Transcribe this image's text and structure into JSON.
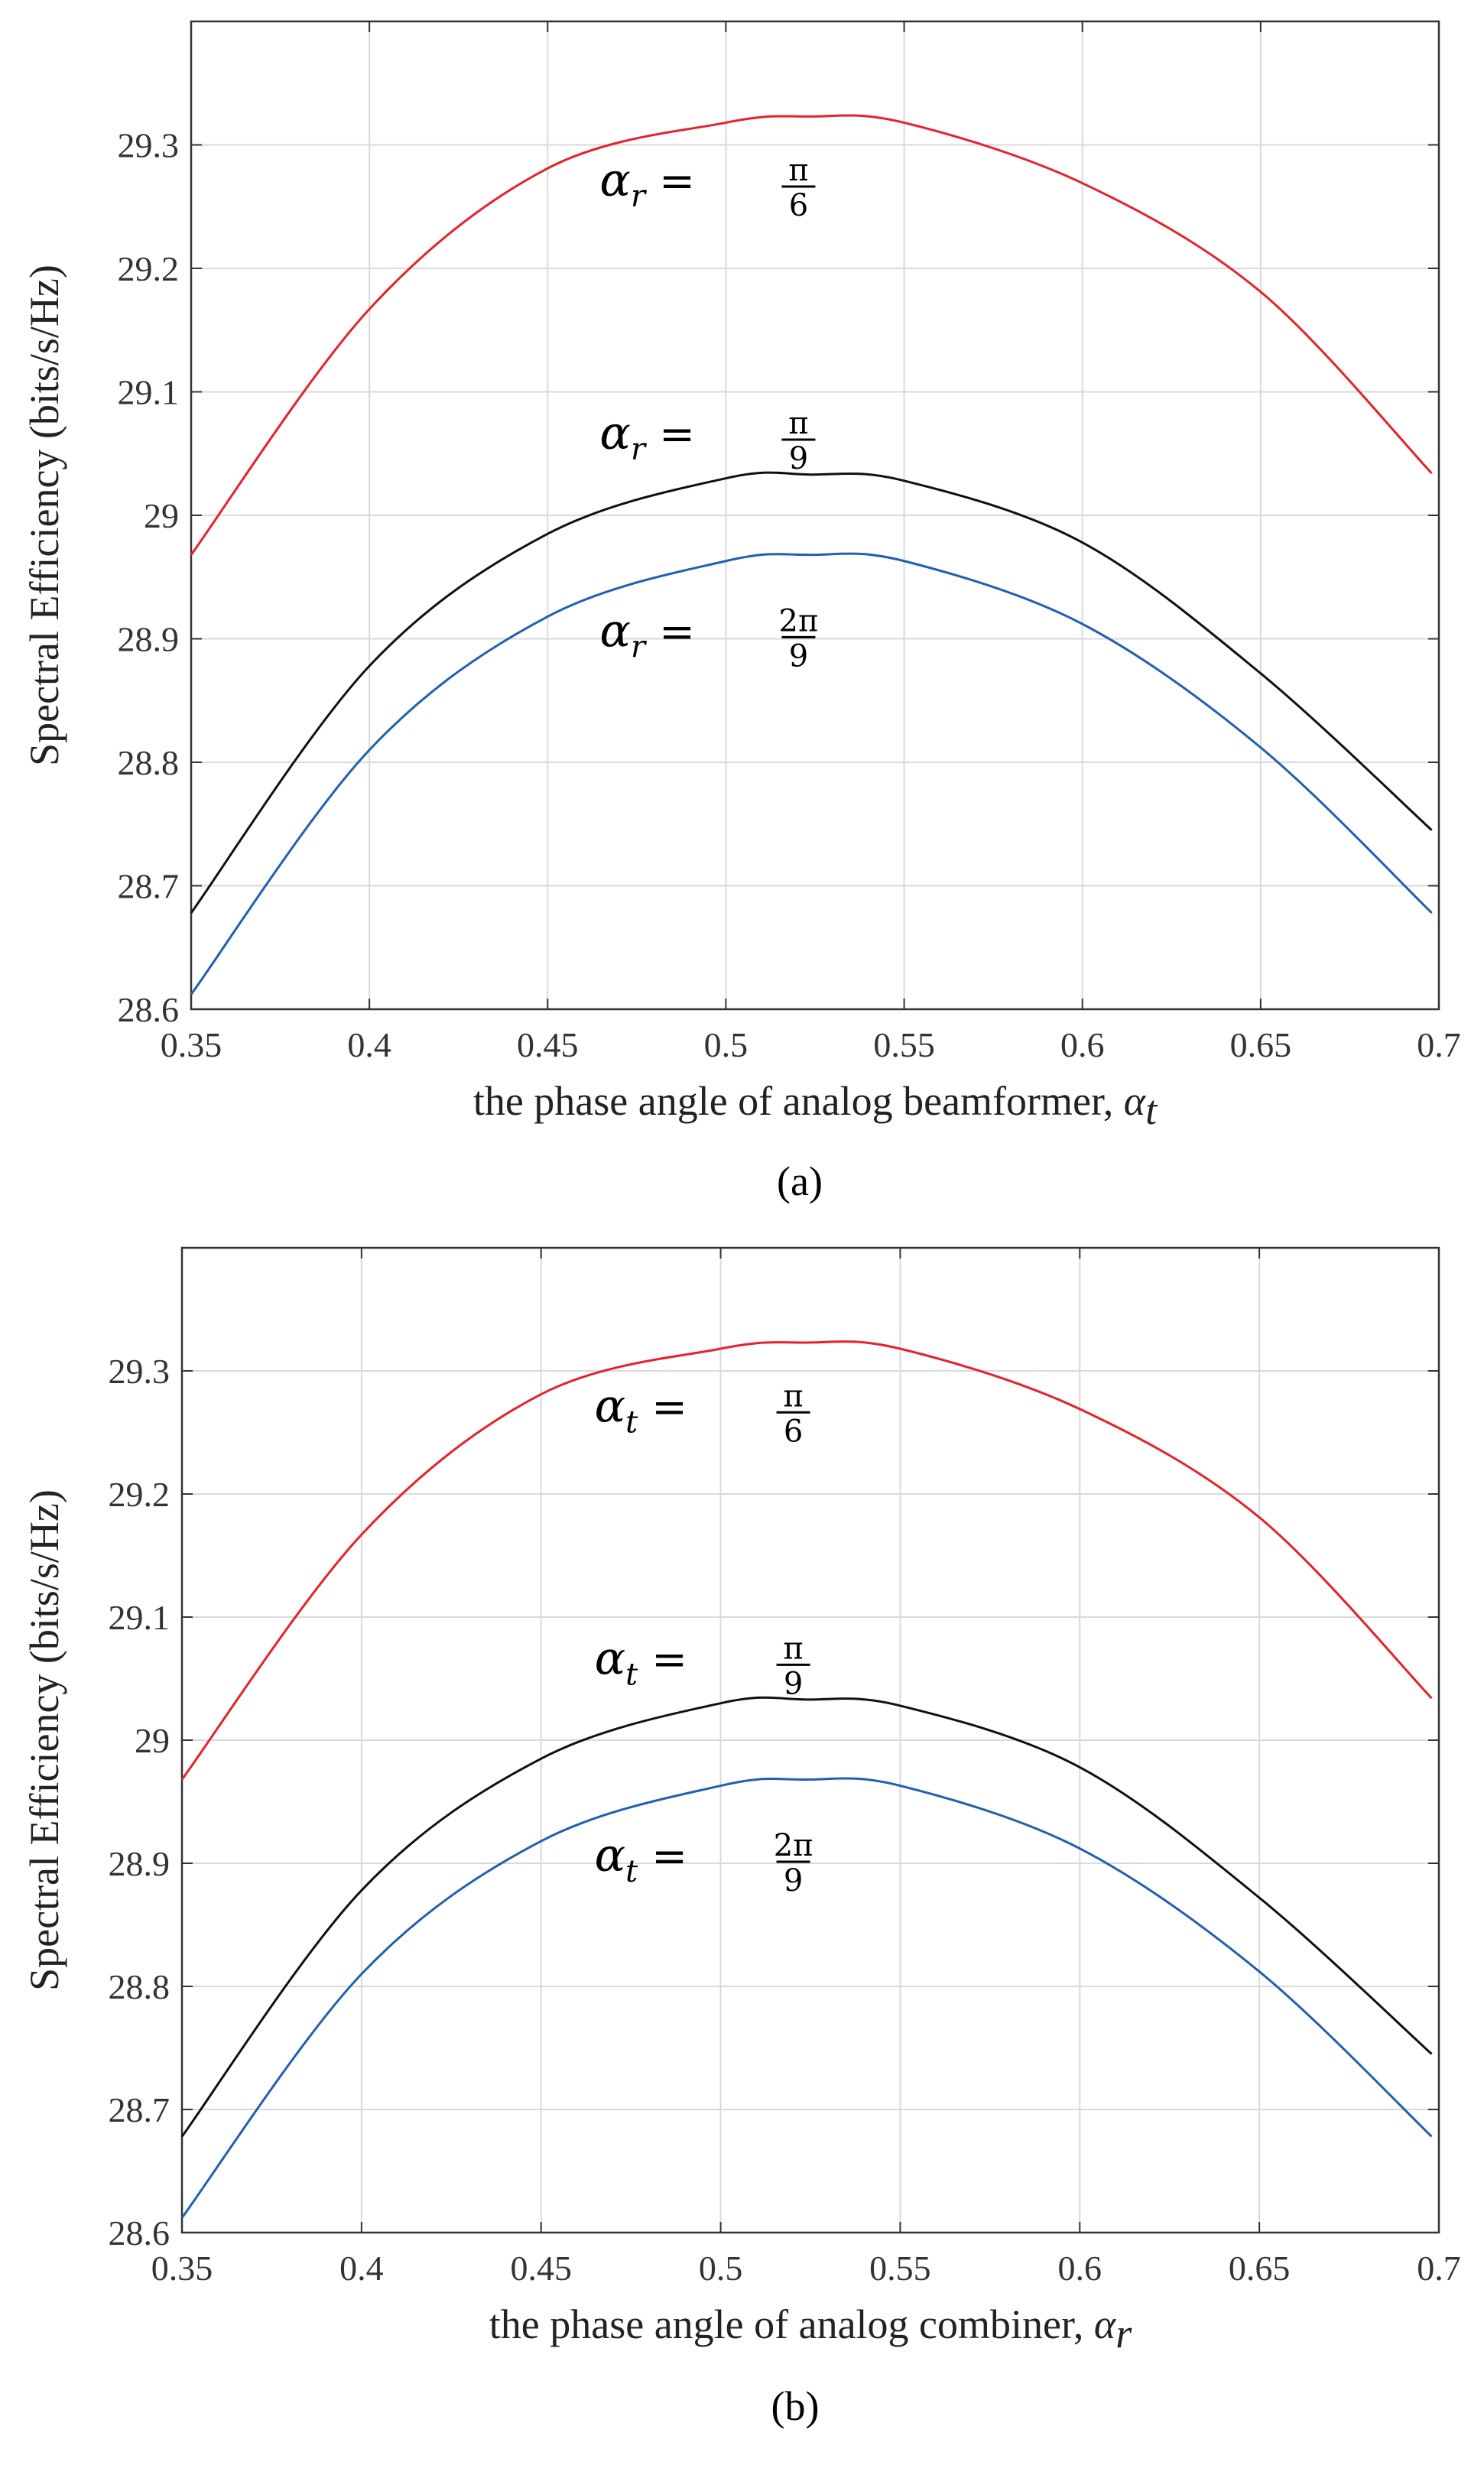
{
  "chart_data": [
    {
      "type": "line",
      "panel": "a",
      "caption": "(a)",
      "xlabel_prefix": "the phase angle of analog beamformer, ",
      "xlabel_var": "α",
      "xlabel_sub": "t",
      "ylabel": "Spectral Efficiency (bits/s/Hz)",
      "xlim": [
        0.35,
        0.7
      ],
      "ylim": [
        28.6,
        29.4
      ],
      "xticks": [
        "0.35",
        "0.4",
        "0.45",
        "0.5",
        "0.55",
        "0.6",
        "0.65",
        "0.7"
      ],
      "yticks": [
        "28.6",
        "28.7",
        "28.8",
        "28.9",
        "29",
        "29.1",
        "29.2",
        "29.3"
      ],
      "grid": true,
      "series": [
        {
          "name": "α_r = π/6",
          "color": "#e8202a",
          "values": {
            "x": [
              0.35,
              0.4,
              0.45,
              0.5,
              0.5236,
              0.55,
              0.6,
              0.65,
              0.698
            ],
            "y": [
              28.968,
              29.167,
              29.281,
              29.318,
              29.323,
              29.318,
              29.269,
              29.181,
              29.034
            ]
          }
        },
        {
          "name": "α_r = π/9",
          "color": "#111111",
          "values": {
            "x": [
              0.35,
              0.4,
              0.45,
              0.5,
              0.5236,
              0.55,
              0.6,
              0.65,
              0.698
            ],
            "y": [
              28.678,
              28.878,
              28.985,
              29.03,
              29.033,
              29.028,
              28.978,
              28.872,
              28.745
            ]
          }
        },
        {
          "name": "α_r = 2π/9",
          "color": "#1f5fb4",
          "values": {
            "x": [
              0.35,
              0.4,
              0.45,
              0.5,
              0.5236,
              0.55,
              0.6,
              0.65,
              0.698
            ],
            "y": [
              28.612,
              28.81,
              28.918,
              28.963,
              28.968,
              28.963,
              28.912,
              28.812,
              28.678
            ]
          }
        }
      ],
      "annotations": [
        {
          "var": "α",
          "sub": "r",
          "eq": "=",
          "num": "π",
          "den": "6",
          "x": 0.5,
          "y": 29.27
        },
        {
          "var": "α",
          "sub": "r",
          "eq": "=",
          "num": "π",
          "den": "9",
          "x": 0.5,
          "y": 29.065
        },
        {
          "var": "α",
          "sub": "r",
          "eq": "=",
          "num": "2π",
          "den": "9",
          "x": 0.5,
          "y": 28.905
        }
      ]
    },
    {
      "type": "line",
      "panel": "b",
      "caption": "(b)",
      "xlabel_prefix": "the phase angle of analog combiner, ",
      "xlabel_var": "α",
      "xlabel_sub": "r",
      "ylabel": "Spectral Efficiency (bits/s/Hz)",
      "xlim": [
        0.35,
        0.7
      ],
      "ylim": [
        28.6,
        29.4
      ],
      "xticks": [
        "0.35",
        "0.4",
        "0.45",
        "0.5",
        "0.55",
        "0.6",
        "0.65",
        "0.7"
      ],
      "yticks": [
        "28.6",
        "28.7",
        "28.8",
        "28.9",
        "29",
        "29.1",
        "29.2",
        "29.3"
      ],
      "grid": true,
      "series": [
        {
          "name": "α_t = π/6",
          "color": "#e8202a",
          "values": {
            "x": [
              0.35,
              0.4,
              0.45,
              0.5,
              0.5236,
              0.55,
              0.6,
              0.65,
              0.698
            ],
            "y": [
              28.968,
              29.167,
              29.281,
              29.318,
              29.323,
              29.318,
              29.269,
              29.181,
              29.034
            ]
          }
        },
        {
          "name": "α_t = π/9",
          "color": "#111111",
          "values": {
            "x": [
              0.35,
              0.4,
              0.45,
              0.5,
              0.5236,
              0.55,
              0.6,
              0.65,
              0.698
            ],
            "y": [
              28.678,
              28.878,
              28.985,
              29.03,
              29.033,
              29.028,
              28.978,
              28.872,
              28.745
            ]
          }
        },
        {
          "name": "α_t = 2π/9",
          "color": "#1f5fb4",
          "values": {
            "x": [
              0.35,
              0.4,
              0.45,
              0.5,
              0.5236,
              0.55,
              0.6,
              0.65,
              0.698
            ],
            "y": [
              28.612,
              28.81,
              28.918,
              28.963,
              28.968,
              28.963,
              28.912,
              28.812,
              28.678
            ]
          }
        }
      ],
      "annotations": [
        {
          "var": "α",
          "sub": "t",
          "eq": "=",
          "num": "π",
          "den": "6",
          "x": 0.5,
          "y": 29.27
        },
        {
          "var": "α",
          "sub": "t",
          "eq": "=",
          "num": "π",
          "den": "9",
          "x": 0.5,
          "y": 29.065
        },
        {
          "var": "α",
          "sub": "t",
          "eq": "=",
          "num": "2π",
          "den": "9",
          "x": 0.5,
          "y": 28.905
        }
      ]
    }
  ]
}
